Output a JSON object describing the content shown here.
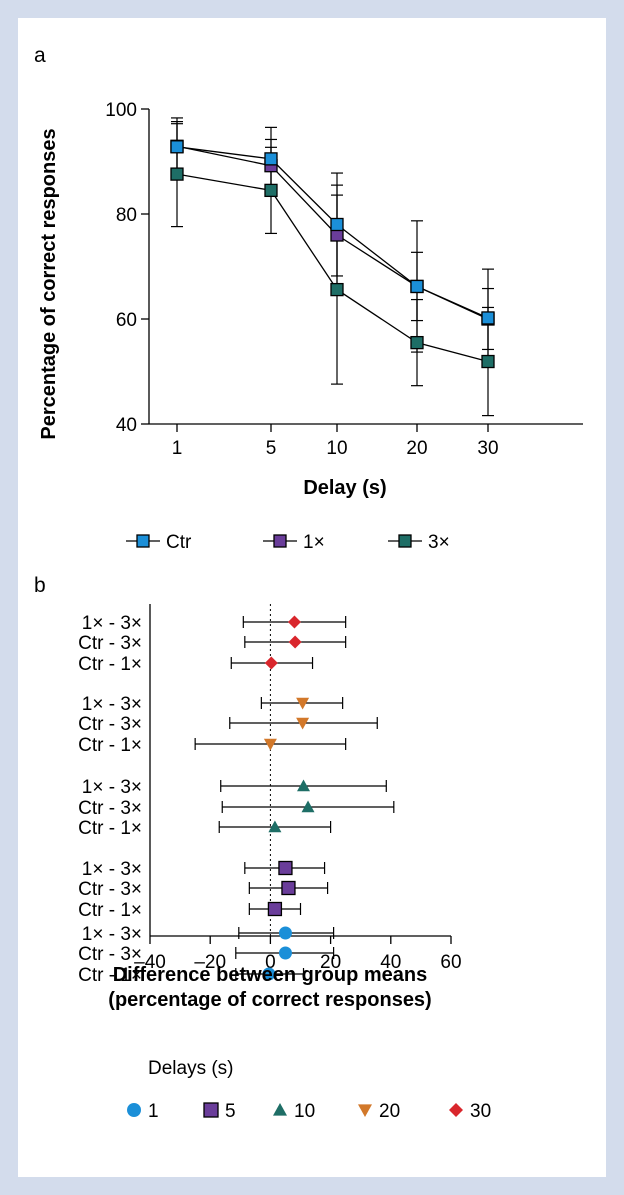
{
  "chart_data": [
    {
      "type": "line",
      "panel_label": "a",
      "xlabel": "Delay (s)",
      "ylabel": "Percentage of correct responses",
      "categories": [
        "1",
        "5",
        "10",
        "20",
        "30"
      ],
      "ylim": [
        40,
        100
      ],
      "yticks": [
        40,
        60,
        80,
        100
      ],
      "series": [
        {
          "name": "Ctr",
          "color": "#1b8fd8",
          "values": [
            92.8,
            90.5,
            78,
            66.2,
            60.2
          ],
          "error": [
            5.5,
            6,
            9.8,
            12.5,
            9.3
          ]
        },
        {
          "name": "1×",
          "color": "#6a3d9a",
          "values": [
            92.9,
            89.2,
            76,
            66.2,
            60
          ],
          "error": [
            4.3,
            5,
            9.5,
            6.5,
            5.8
          ]
        },
        {
          "name": "3×",
          "color": "#1e6e66",
          "values": [
            87.6,
            84.5,
            65.6,
            55.5,
            51.9
          ],
          "error": [
            10,
            8.2,
            18,
            8.2,
            10.3
          ]
        }
      ],
      "legend_position": "bottom"
    },
    {
      "type": "scatter",
      "panel_label": "b",
      "xlabel": "Difference between group means",
      "xlabel2": "(percentage of correct responses)",
      "xlim": [
        -40,
        60
      ],
      "xticks": [
        -40,
        -20,
        0,
        20,
        40,
        60
      ],
      "legend_title": "Delays (s)",
      "groups": [
        {
          "delay": "30",
          "color": "#d9262c",
          "marker": "diamond",
          "rows": [
            {
              "label": "1× - 3×",
              "mean": 8,
              "low": -9,
              "high": 25
            },
            {
              "label": "Ctr - 3×",
              "mean": 8.2,
              "low": -8.5,
              "high": 25
            },
            {
              "label": "Ctr - 1×",
              "mean": 0.3,
              "low": -13,
              "high": 14
            }
          ]
        },
        {
          "delay": "20",
          "color": "#d2782a",
          "marker": "triangle-down",
          "rows": [
            {
              "label": "1× - 3×",
              "mean": 10.7,
              "low": -3,
              "high": 24
            },
            {
              "label": "Ctr - 3×",
              "mean": 10.7,
              "low": -13.5,
              "high": 35.5
            },
            {
              "label": "Ctr - 1×",
              "mean": 0,
              "low": -25,
              "high": 25
            }
          ]
        },
        {
          "delay": "10",
          "color": "#1e6e66",
          "marker": "triangle-up",
          "rows": [
            {
              "label": "1× - 3×",
              "mean": 11,
              "low": -16.5,
              "high": 38.5
            },
            {
              "label": "Ctr - 3×",
              "mean": 12.5,
              "low": -16,
              "high": 41
            },
            {
              "label": "Ctr - 1×",
              "mean": 1.5,
              "low": -17,
              "high": 20
            }
          ]
        },
        {
          "delay": "5",
          "color": "#6a3d9a",
          "marker": "square",
          "rows": [
            {
              "label": "1× - 3×",
              "mean": 5,
              "low": -8.5,
              "high": 18
            },
            {
              "label": "Ctr - 3×",
              "mean": 6,
              "low": -7,
              "high": 19
            },
            {
              "label": "Ctr - 1×",
              "mean": 1.5,
              "low": -7,
              "high": 10
            }
          ]
        },
        {
          "delay": "1",
          "color": "#1b8fd8",
          "marker": "circle",
          "rows": [
            {
              "label": "1× - 3×",
              "mean": 5,
              "low": -10.5,
              "high": 21
            },
            {
              "label": "Ctr - 3×",
              "mean": 5,
              "low": -11.5,
              "high": 21
            },
            {
              "label": "Ctr - 1×",
              "mean": -0.5,
              "low": -11.5,
              "high": 11
            }
          ]
        }
      ],
      "legend_order": [
        "1",
        "5",
        "10",
        "20",
        "30"
      ]
    }
  ]
}
